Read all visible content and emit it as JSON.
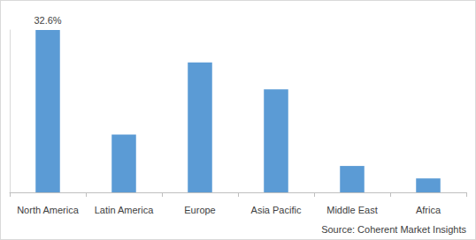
{
  "chart_data": {
    "type": "bar",
    "categories": [
      "North America",
      "Latin America",
      "Europe",
      "Asia Pacific",
      "Middle East",
      "Africa"
    ],
    "values": [
      32.6,
      11.6,
      26.1,
      20.7,
      5.3,
      2.8
    ],
    "value_labels": [
      "32.6%",
      null,
      null,
      null,
      null,
      null
    ],
    "data_labels": true,
    "color": "#5b9bd5",
    "ylim": [
      0,
      32.6
    ],
    "grid": false,
    "tick_labels": "x",
    "source": "Source: Coherent Market Insights"
  }
}
